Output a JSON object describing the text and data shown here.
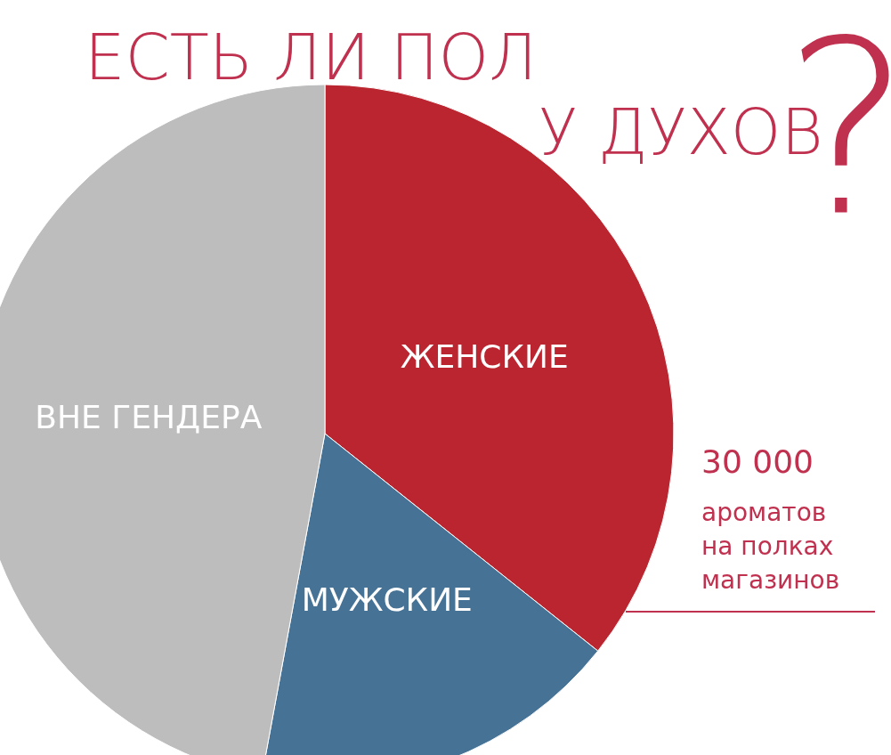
{
  "chart_data": {
    "type": "pie",
    "title": "ЕСТЬ ЛИ ПОЛ\nУ ДУХОВ?",
    "categories": [
      "ЖЕНСКИЕ",
      "МУЖСКИЕ",
      "ВНЕ ГЕНДЕРА"
    ],
    "values": [
      35.7,
      17.2,
      47.1
    ],
    "colors": [
      "#bb2530",
      "#467295",
      "#bdbdbd"
    ],
    "annotations": [
      "30 000\nароматов\nна полках\nмагазинов"
    ],
    "legend": false
  }
}
